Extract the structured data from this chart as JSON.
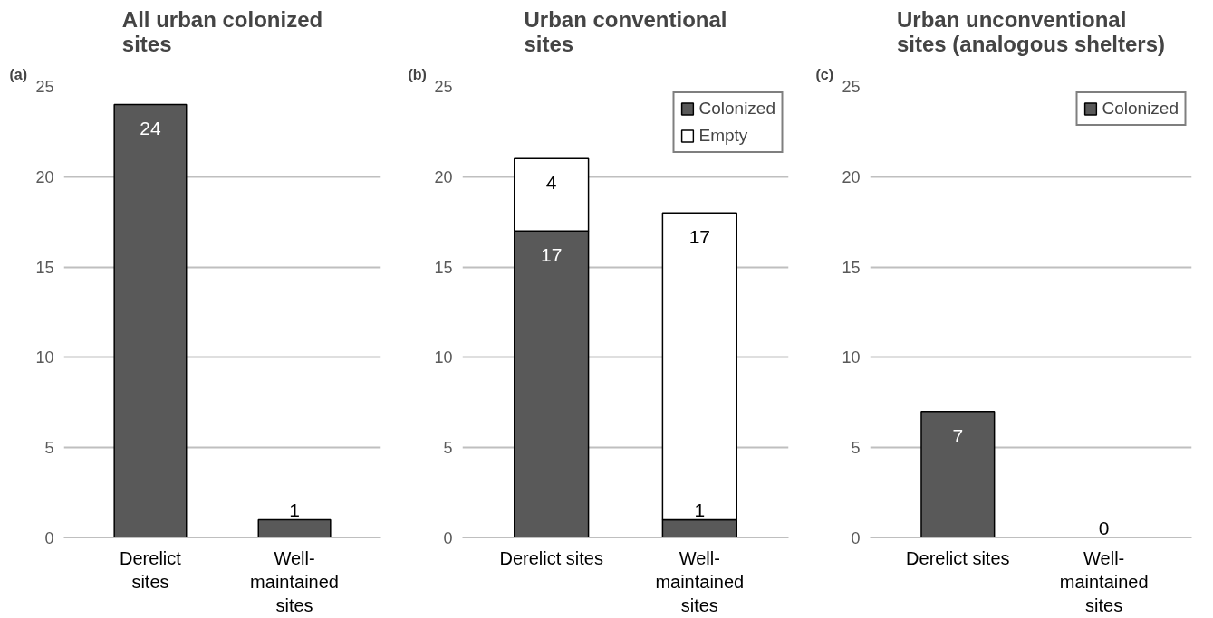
{
  "chart_data": [
    {
      "type": "bar",
      "title": "All urban colonized\nsites",
      "annotations": [
        "(a)"
      ],
      "categories": [
        "Derelict\nsites",
        "Well-\nmaintained\nsites"
      ],
      "stacked": true,
      "series": [
        {
          "color": "#595959",
          "values": [
            24,
            1
          ]
        }
      ],
      "ylim": [
        0,
        25
      ],
      "yticks": [
        0,
        5,
        10,
        15,
        20,
        25
      ],
      "grid": "y",
      "data_labels": true
    },
    {
      "type": "bar",
      "title": "Urban conventional\nsites",
      "annotations": [
        "(b)"
      ],
      "categories": [
        "Derelict sites",
        "Well-\nmaintained\nsites"
      ],
      "stacked": true,
      "series": [
        {
          "name": "Colonized",
          "color": "#595959",
          "values": [
            17,
            1
          ]
        },
        {
          "name": "Empty",
          "color": "#ffffff",
          "values": [
            4,
            17
          ]
        }
      ],
      "ylim": [
        0,
        25
      ],
      "yticks": [
        0,
        5,
        10,
        15,
        20,
        25
      ],
      "grid": "y",
      "data_labels": true,
      "legend": "top right"
    },
    {
      "type": "bar",
      "title": "Urban unconventional\nsites (analogous shelters)",
      "annotations": [
        "(c)"
      ],
      "categories": [
        "Derelict sites",
        "Well-\nmaintained\nsites"
      ],
      "stacked": true,
      "series": [
        {
          "name": "Colonized",
          "color": "#595959",
          "values": [
            7,
            0
          ]
        }
      ],
      "ylim": [
        0,
        25
      ],
      "yticks": [
        0,
        5,
        10,
        15,
        20,
        25
      ],
      "grid": "y",
      "data_labels": true,
      "legend": "top right"
    }
  ]
}
